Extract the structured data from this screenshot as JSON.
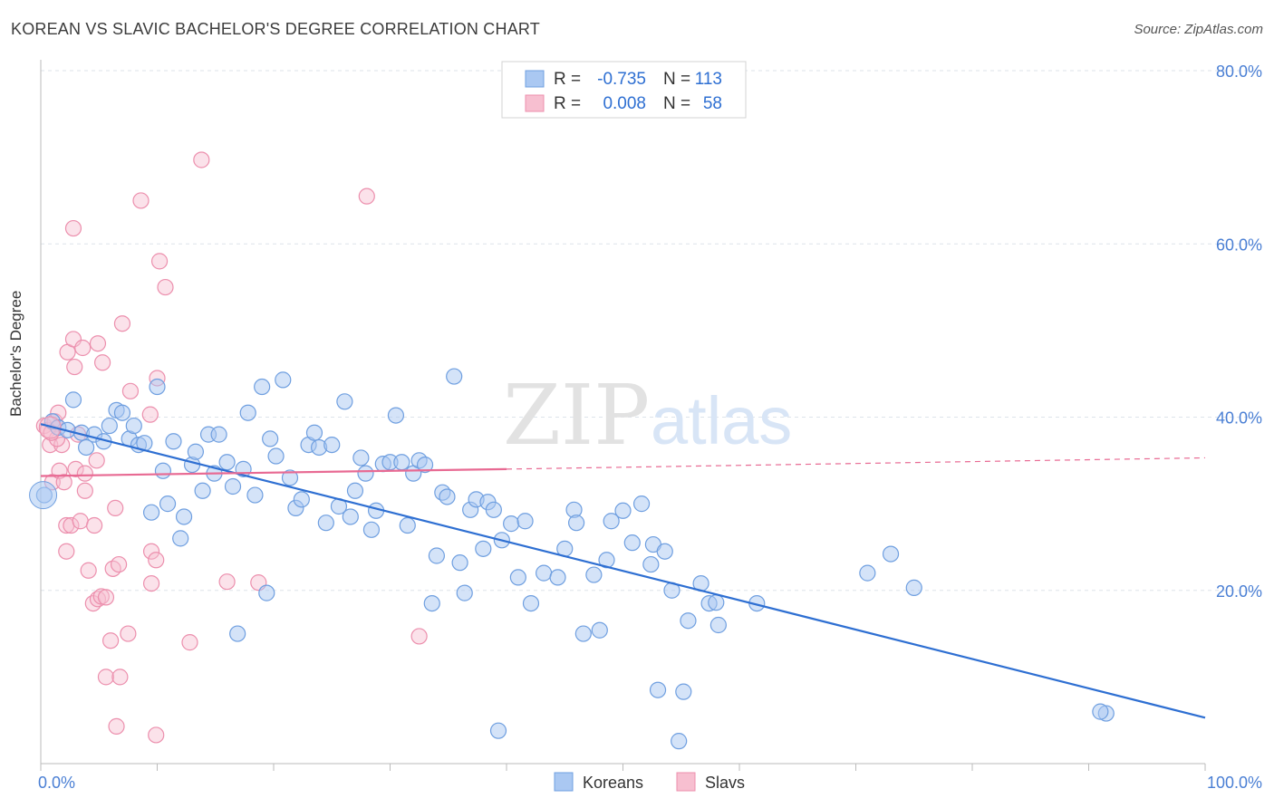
{
  "header": {
    "title": "KOREAN VS SLAVIC BACHELOR'S DEGREE CORRELATION CHART",
    "source": "Source: ZipAtlas.com"
  },
  "watermark": {
    "zip": "ZIP",
    "atlas": "atlas"
  },
  "colors": {
    "koreans_fill": "#aac8f2",
    "koreans_stroke": "#6f9fe0",
    "koreans_line": "#2e6fd2",
    "slavs_fill": "#f7bfd0",
    "slavs_stroke": "#ec8fad",
    "slavs_line": "#e86a93",
    "axis_label": "#4a7fd4",
    "grid": "#dde3ea"
  },
  "legend_top": {
    "rows": [
      {
        "r_label": "R =",
        "r_value": "-0.735",
        "n_label": "N =",
        "n_value": "113"
      },
      {
        "r_label": "R =",
        "r_value": "0.008",
        "n_label": "N =",
        "n_value": "58"
      }
    ]
  },
  "legend_bottom": {
    "items": [
      "Koreans",
      "Slavs"
    ]
  },
  "chart_data": {
    "type": "scatter",
    "title": "KOREAN VS SLAVIC BACHELOR'S DEGREE CORRELATION CHART",
    "xlabel": "",
    "ylabel": "Bachelor's Degree",
    "xlim": [
      0,
      100
    ],
    "ylim": [
      0,
      80
    ],
    "x_tick_labels": [
      "0.0%",
      "100.0%"
    ],
    "y_tick_labels": [
      "20.0%",
      "40.0%",
      "60.0%",
      "80.0%"
    ],
    "y_ticks": [
      20,
      40,
      60,
      80
    ],
    "grid": true,
    "legend_position": "bottom-center",
    "series": [
      {
        "name": "Koreans",
        "r": -0.735,
        "n": 113,
        "trend": {
          "x": [
            0,
            100
          ],
          "y": [
            39.2,
            5.3
          ]
        },
        "points": [
          [
            0.3,
            31.0
          ],
          [
            1.0,
            39.5
          ],
          [
            1.5,
            38.8
          ],
          [
            2.3,
            38.5
          ],
          [
            2.8,
            42.0
          ],
          [
            3.5,
            38.2
          ],
          [
            3.9,
            36.5
          ],
          [
            4.6,
            38.0
          ],
          [
            5.4,
            37.2
          ],
          [
            5.9,
            39.0
          ],
          [
            6.5,
            40.8
          ],
          [
            7.0,
            40.5
          ],
          [
            7.6,
            37.5
          ],
          [
            8.0,
            39.0
          ],
          [
            8.4,
            36.8
          ],
          [
            8.9,
            37.0
          ],
          [
            9.5,
            29.0
          ],
          [
            10.0,
            43.5
          ],
          [
            10.5,
            33.8
          ],
          [
            10.9,
            30.0
          ],
          [
            11.4,
            37.2
          ],
          [
            12.0,
            26.0
          ],
          [
            12.3,
            28.5
          ],
          [
            13.0,
            34.5
          ],
          [
            13.3,
            36.0
          ],
          [
            13.9,
            31.5
          ],
          [
            14.4,
            38.0
          ],
          [
            14.9,
            33.5
          ],
          [
            15.3,
            38.0
          ],
          [
            16.0,
            34.8
          ],
          [
            16.5,
            32.0
          ],
          [
            16.9,
            15.0
          ],
          [
            17.4,
            34.0
          ],
          [
            17.8,
            40.5
          ],
          [
            18.4,
            31.0
          ],
          [
            19.0,
            43.5
          ],
          [
            19.4,
            19.7
          ],
          [
            19.7,
            37.5
          ],
          [
            20.2,
            35.5
          ],
          [
            20.8,
            44.3
          ],
          [
            21.4,
            33.0
          ],
          [
            21.9,
            29.5
          ],
          [
            22.4,
            30.5
          ],
          [
            23.0,
            36.8
          ],
          [
            23.5,
            38.2
          ],
          [
            23.9,
            36.5
          ],
          [
            24.5,
            27.8
          ],
          [
            25.0,
            36.8
          ],
          [
            25.6,
            29.7
          ],
          [
            26.1,
            41.8
          ],
          [
            26.6,
            28.5
          ],
          [
            27.0,
            31.5
          ],
          [
            27.5,
            35.3
          ],
          [
            27.9,
            33.5
          ],
          [
            28.4,
            27.0
          ],
          [
            28.8,
            29.2
          ],
          [
            29.4,
            34.6
          ],
          [
            30.0,
            34.8
          ],
          [
            30.5,
            40.2
          ],
          [
            31.0,
            34.8
          ],
          [
            31.5,
            27.5
          ],
          [
            32.0,
            33.5
          ],
          [
            32.5,
            35.0
          ],
          [
            33.0,
            34.5
          ],
          [
            33.6,
            18.5
          ],
          [
            34.0,
            24.0
          ],
          [
            34.5,
            31.3
          ],
          [
            34.9,
            30.8
          ],
          [
            35.5,
            44.7
          ],
          [
            36.0,
            23.2
          ],
          [
            36.4,
            19.7
          ],
          [
            36.9,
            29.3
          ],
          [
            37.4,
            30.5
          ],
          [
            38.0,
            24.8
          ],
          [
            38.4,
            30.2
          ],
          [
            38.9,
            29.3
          ],
          [
            39.3,
            3.8
          ],
          [
            39.6,
            25.8
          ],
          [
            40.4,
            27.7
          ],
          [
            41.0,
            21.5
          ],
          [
            41.6,
            28.0
          ],
          [
            42.1,
            18.5
          ],
          [
            43.2,
            22.0
          ],
          [
            44.4,
            21.5
          ],
          [
            45.0,
            24.8
          ],
          [
            45.8,
            29.3
          ],
          [
            46.0,
            27.8
          ],
          [
            46.6,
            15.0
          ],
          [
            47.5,
            21.8
          ],
          [
            48.0,
            15.4
          ],
          [
            48.6,
            23.5
          ],
          [
            49.0,
            28.0
          ],
          [
            50.0,
            29.2
          ],
          [
            50.8,
            25.5
          ],
          [
            51.6,
            30.0
          ],
          [
            52.4,
            23.0
          ],
          [
            52.6,
            25.3
          ],
          [
            53.0,
            8.5
          ],
          [
            53.6,
            24.5
          ],
          [
            54.2,
            20.0
          ],
          [
            54.8,
            2.6
          ],
          [
            55.2,
            8.3
          ],
          [
            55.6,
            16.5
          ],
          [
            56.7,
            20.8
          ],
          [
            57.4,
            18.5
          ],
          [
            58.0,
            18.6
          ],
          [
            58.2,
            16.0
          ],
          [
            61.5,
            18.5
          ],
          [
            71.0,
            22.0
          ],
          [
            73.0,
            24.2
          ],
          [
            75.0,
            20.3
          ],
          [
            91.5,
            5.8
          ],
          [
            91.0,
            6.0
          ]
        ]
      },
      {
        "name": "Slavs",
        "r": 0.008,
        "n": 58,
        "trend": {
          "x": [
            0,
            40
          ],
          "y": [
            33.2,
            34.0
          ]
        },
        "trend_extension": {
          "x": [
            40,
            100
          ],
          "y": [
            34.0,
            35.3
          ]
        },
        "points": [
          [
            0.3,
            39.0
          ],
          [
            0.6,
            38.5
          ],
          [
            0.8,
            36.8
          ],
          [
            1.0,
            32.5
          ],
          [
            1.2,
            39.5
          ],
          [
            1.5,
            40.5
          ],
          [
            1.6,
            33.8
          ],
          [
            1.8,
            36.8
          ],
          [
            2.0,
            32.5
          ],
          [
            2.2,
            24.5
          ],
          [
            2.2,
            27.5
          ],
          [
            2.3,
            47.5
          ],
          [
            2.6,
            27.5
          ],
          [
            2.8,
            49.0
          ],
          [
            2.9,
            45.8
          ],
          [
            3.0,
            34.0
          ],
          [
            3.2,
            38.0
          ],
          [
            3.4,
            28.0
          ],
          [
            3.6,
            48.0
          ],
          [
            3.8,
            31.5
          ],
          [
            3.8,
            33.5
          ],
          [
            4.1,
            22.3
          ],
          [
            4.5,
            18.5
          ],
          [
            4.6,
            27.5
          ],
          [
            4.8,
            35.0
          ],
          [
            4.9,
            48.5
          ],
          [
            4.9,
            19.0
          ],
          [
            5.2,
            19.3
          ],
          [
            5.3,
            46.3
          ],
          [
            5.6,
            10.0
          ],
          [
            5.6,
            19.2
          ],
          [
            6.0,
            14.2
          ],
          [
            6.2,
            22.5
          ],
          [
            6.4,
            29.5
          ],
          [
            6.5,
            4.3
          ],
          [
            6.7,
            23.0
          ],
          [
            6.8,
            10.0
          ],
          [
            7.0,
            50.8
          ],
          [
            7.5,
            15.0
          ],
          [
            7.7,
            43.0
          ],
          [
            8.6,
            65.0
          ],
          [
            9.4,
            40.3
          ],
          [
            9.5,
            24.5
          ],
          [
            9.5,
            20.8
          ],
          [
            9.9,
            3.3
          ],
          [
            9.9,
            23.5
          ],
          [
            10.0,
            44.5
          ],
          [
            10.2,
            58.0
          ],
          [
            10.7,
            55.0
          ],
          [
            12.8,
            14.0
          ],
          [
            13.8,
            69.7
          ],
          [
            16.0,
            21.0
          ],
          [
            18.7,
            20.9
          ],
          [
            28.0,
            65.5
          ],
          [
            32.5,
            14.7
          ],
          [
            2.8,
            61.8
          ],
          [
            1.4,
            37.5
          ],
          [
            0.9,
            38.2
          ]
        ]
      }
    ]
  }
}
